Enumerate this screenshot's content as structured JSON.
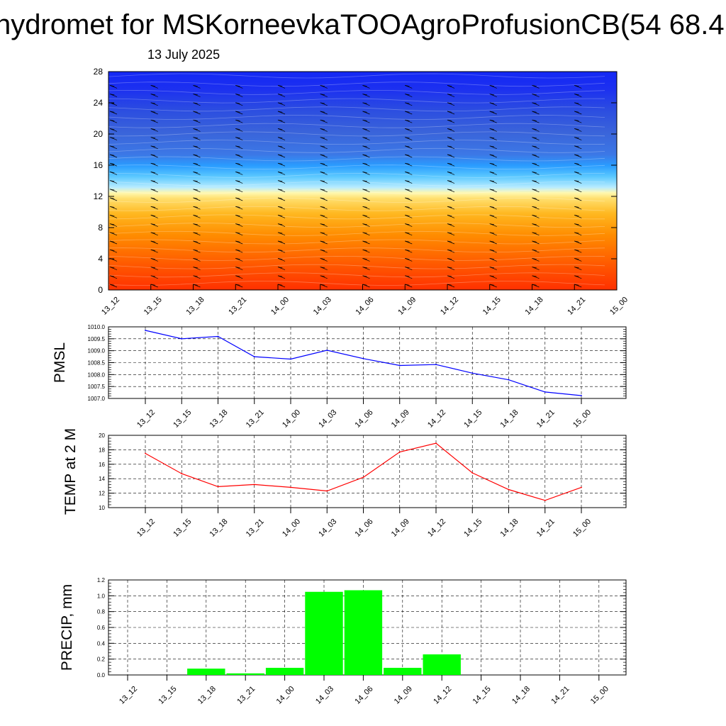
{
  "title": "hydromet for MSKorneevkaTOOAgroProfusionCB(54 68.4",
  "subtitle": "13 July 2025",
  "colors": {
    "pmsl_line": "#0000ff",
    "temp_line": "#ff0000",
    "precip_bar": "#00ff00",
    "grid": "#000000"
  },
  "chart_data": [
    {
      "type": "heatmap",
      "name": "",
      "x_categories": [
        "13_12",
        "13_15",
        "13_18",
        "13_21",
        "14_00",
        "14_03",
        "14_06",
        "14_09",
        "14_12",
        "14_15",
        "14_18",
        "14_21",
        "15_00"
      ],
      "ylim": [
        0,
        28
      ],
      "yticks": [
        0,
        4,
        8,
        12,
        16,
        20,
        24,
        28
      ],
      "ylabel": "",
      "colormap": [
        "#ff3000",
        "#ff6a00",
        "#ffa000",
        "#ffd040",
        "#fff8b0",
        "#7fe0ff",
        "#2aa0ff",
        "#2f6fe6",
        "#2a5ad8",
        "#1a2ef0"
      ],
      "wind_barbs": true
    },
    {
      "type": "line",
      "ylabel": "PMSL",
      "categories": [
        "13_12",
        "13_15",
        "13_18",
        "13_21",
        "14_00",
        "14_03",
        "14_06",
        "14_09",
        "14_12",
        "14_15",
        "14_18",
        "14_21",
        "15_00"
      ],
      "values": [
        1009.85,
        1009.5,
        1009.6,
        1008.75,
        1008.65,
        1009.02,
        1008.67,
        1008.38,
        1008.42,
        1008.06,
        1007.78,
        1007.27,
        1007.12
      ],
      "ylim": [
        1007.0,
        1010.0
      ],
      "yticks": [
        "1007.0",
        "1007.5",
        "1008.0",
        "1008.5",
        "1009.0",
        "1009.5",
        "1010.0"
      ],
      "grid": true
    },
    {
      "type": "line",
      "ylabel": "TEMP at 2 M",
      "categories": [
        "13_12",
        "13_15",
        "13_18",
        "13_21",
        "14_00",
        "14_03",
        "14_06",
        "14_09",
        "14_12",
        "14_15",
        "14_18",
        "14_21",
        "15_00"
      ],
      "values": [
        17.5,
        14.7,
        12.9,
        13.2,
        12.8,
        12.3,
        14.2,
        17.7,
        18.9,
        14.8,
        12.5,
        11.0,
        12.8
      ],
      "ylim": [
        10,
        20
      ],
      "yticks": [
        "10",
        "12",
        "14",
        "16",
        "18",
        "20"
      ],
      "grid": true
    },
    {
      "type": "bar",
      "ylabel": "PRECIP, mm",
      "categories": [
        "13_12",
        "13_15",
        "13_18",
        "13_21",
        "14_00",
        "14_03",
        "14_06",
        "14_09",
        "14_12",
        "14_15",
        "14_18",
        "14_21",
        "15_00"
      ],
      "values": [
        0,
        0,
        0.08,
        0.02,
        0.09,
        1.05,
        1.07,
        0.09,
        0.26,
        0,
        0,
        0,
        0
      ],
      "ylim": [
        0,
        1.2
      ],
      "yticks": [
        "0.0",
        "0.2",
        "0.4",
        "0.6",
        "0.8",
        "1.0",
        "1.2"
      ],
      "grid": true
    }
  ]
}
